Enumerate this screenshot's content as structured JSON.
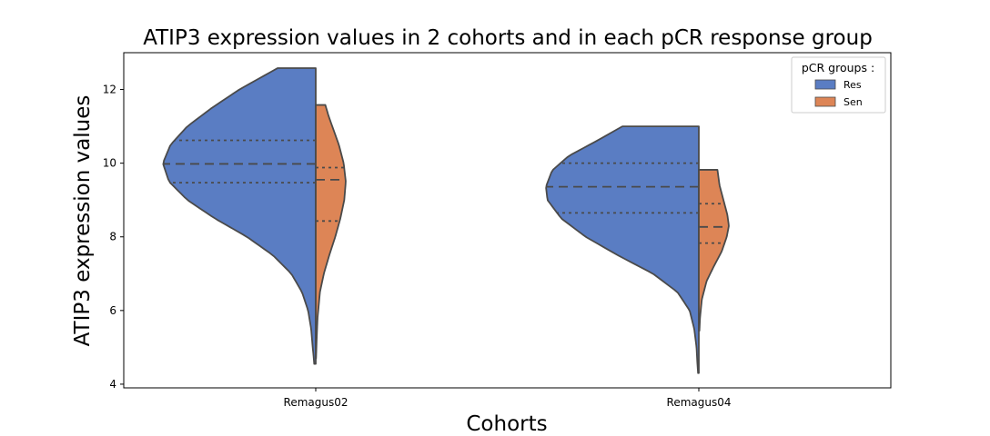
{
  "chart_data": {
    "type": "violin",
    "title": "ATIP3 expression values in 2 cohorts and in each pCR response group",
    "xlabel": "Cohorts",
    "ylabel": "ATIP3 expression values",
    "categories": [
      "Remagus02",
      "Remagus04"
    ],
    "ylim": [
      3.9,
      13.0
    ],
    "yticks": [
      4,
      6,
      8,
      10,
      12
    ],
    "split": true,
    "inner": "quartile",
    "legend": {
      "title": "pCR groups :",
      "position": "top-right"
    },
    "series": [
      {
        "name": "Res",
        "color": "#5a7dc3",
        "violins": [
          {
            "category": "Remagus02",
            "min": 4.55,
            "max": 12.58,
            "q1": 9.47,
            "median": 9.98,
            "q3": 10.62,
            "profile": [
              [
                4.55,
                0.01
              ],
              [
                4.8,
                0.015
              ],
              [
                5.0,
                0.02
              ],
              [
                5.5,
                0.03
              ],
              [
                6.0,
                0.05
              ],
              [
                6.5,
                0.09
              ],
              [
                7.0,
                0.16
              ],
              [
                7.5,
                0.28
              ],
              [
                8.0,
                0.45
              ],
              [
                8.5,
                0.66
              ],
              [
                9.0,
                0.84
              ],
              [
                9.5,
                0.96
              ],
              [
                10.0,
                1.0
              ],
              [
                10.5,
                0.95
              ],
              [
                11.0,
                0.84
              ],
              [
                11.5,
                0.68
              ],
              [
                12.0,
                0.5
              ],
              [
                12.58,
                0.25
              ]
            ]
          },
          {
            "category": "Remagus04",
            "min": 4.3,
            "max": 11.0,
            "q1": 8.65,
            "median": 9.36,
            "q3": 10.0,
            "profile": [
              [
                4.3,
                0.005
              ],
              [
                4.6,
                0.01
              ],
              [
                5.0,
                0.015
              ],
              [
                5.5,
                0.03
              ],
              [
                6.0,
                0.06
              ],
              [
                6.5,
                0.14
              ],
              [
                7.0,
                0.3
              ],
              [
                7.5,
                0.53
              ],
              [
                8.0,
                0.74
              ],
              [
                8.5,
                0.9
              ],
              [
                9.0,
                0.99
              ],
              [
                9.36,
                1.0
              ],
              [
                9.8,
                0.96
              ],
              [
                10.2,
                0.85
              ],
              [
                10.6,
                0.67
              ],
              [
                11.0,
                0.5
              ]
            ]
          }
        ]
      },
      {
        "name": "Sen",
        "color": "#dd8556",
        "violins": [
          {
            "category": "Remagus02",
            "min": 4.7,
            "max": 11.58,
            "q1": 8.43,
            "median": 9.55,
            "q3": 9.88,
            "profile": [
              [
                4.7,
                0.01
              ],
              [
                5.2,
                0.03
              ],
              [
                5.8,
                0.06
              ],
              [
                6.5,
                0.14
              ],
              [
                7.0,
                0.27
              ],
              [
                7.5,
                0.45
              ],
              [
                8.0,
                0.65
              ],
              [
                8.5,
                0.82
              ],
              [
                9.0,
                0.95
              ],
              [
                9.5,
                1.0
              ],
              [
                10.0,
                0.93
              ],
              [
                10.5,
                0.77
              ],
              [
                11.0,
                0.55
              ],
              [
                11.3,
                0.42
              ],
              [
                11.58,
                0.32
              ]
            ]
          },
          {
            "category": "Remagus04",
            "min": 5.45,
            "max": 9.82,
            "q1": 7.83,
            "median": 8.27,
            "q3": 8.9,
            "profile": [
              [
                5.45,
                0.02
              ],
              [
                5.8,
                0.04
              ],
              [
                6.3,
                0.1
              ],
              [
                6.8,
                0.26
              ],
              [
                7.2,
                0.5
              ],
              [
                7.6,
                0.76
              ],
              [
                8.0,
                0.93
              ],
              [
                8.3,
                1.0
              ],
              [
                8.6,
                0.95
              ],
              [
                9.0,
                0.82
              ],
              [
                9.4,
                0.69
              ],
              [
                9.82,
                0.62
              ]
            ]
          }
        ]
      }
    ]
  }
}
